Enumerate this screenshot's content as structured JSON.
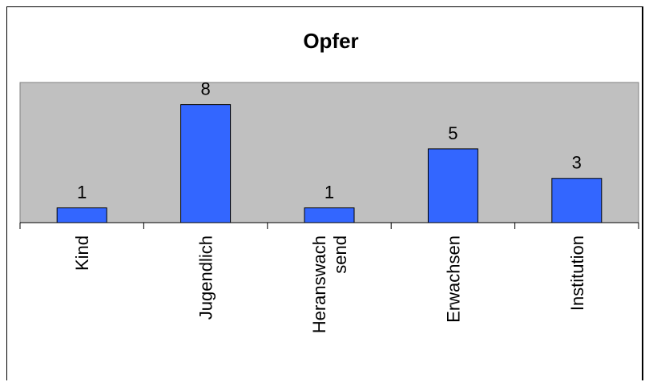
{
  "chart_data": {
    "type": "bar",
    "title": "Opfer",
    "xlabel": "",
    "ylabel": "",
    "categories": [
      "Kind",
      "Jugendlich",
      "Heranswach send",
      "Erwachsen",
      "Institution"
    ],
    "category_lines": [
      [
        "Kind"
      ],
      [
        "Jugendlich"
      ],
      [
        "Heranswach",
        "send"
      ],
      [
        "Erwachsen"
      ],
      [
        "Institution"
      ]
    ],
    "values": [
      1,
      8,
      1,
      5,
      3
    ],
    "data_labels": [
      "1",
      "8",
      "1",
      "5",
      "3"
    ],
    "ylim": [
      0,
      9.5
    ],
    "grid": false,
    "legend": "none",
    "colors": {
      "bar": "#3366ff",
      "plot_area": "#c0c0c0",
      "outline": "#000000"
    }
  }
}
